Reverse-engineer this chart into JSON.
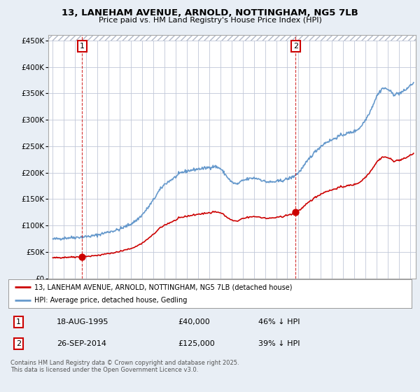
{
  "title": "13, LANEHAM AVENUE, ARNOLD, NOTTINGHAM, NG5 7LB",
  "subtitle": "Price paid vs. HM Land Registry's House Price Index (HPI)",
  "legend_label_red": "13, LANEHAM AVENUE, ARNOLD, NOTTINGHAM, NG5 7LB (detached house)",
  "legend_label_blue": "HPI: Average price, detached house, Gedling",
  "point1_label": "1",
  "point1_date": "18-AUG-1995",
  "point1_price": "£40,000",
  "point1_hpi": "46% ↓ HPI",
  "point1_year": 1995.625,
  "point1_value": 40000,
  "point2_label": "2",
  "point2_date": "26-SEP-2014",
  "point2_price": "£125,000",
  "point2_hpi": "39% ↓ HPI",
  "point2_year": 2014.74,
  "point2_value": 125000,
  "ylim": [
    0,
    460000
  ],
  "xlim_left": 1992.6,
  "xlim_right": 2025.5,
  "hatch_cutoff_year": 1995.625,
  "hatch_bottom": 450000,
  "copyright": "Contains HM Land Registry data © Crown copyright and database right 2025.\nThis data is licensed under the Open Government Licence v3.0.",
  "bg_color": "#e8eef5",
  "plot_bg_color": "#e8eef5",
  "red_color": "#cc0000",
  "blue_color": "#6699cc",
  "hatch_color": "#b0b8c8",
  "grid_color": "#c0c8d8"
}
